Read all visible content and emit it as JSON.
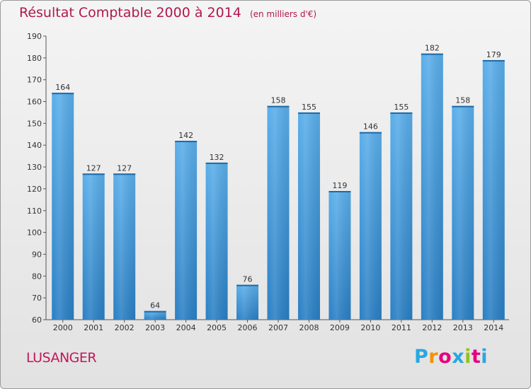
{
  "chart_data": {
    "type": "bar",
    "title": "Résultat Comptable 2000 à 2014",
    "subtitle": "(en milliers d'€)",
    "categories": [
      "2000",
      "2001",
      "2002",
      "2003",
      "2004",
      "2005",
      "2006",
      "2007",
      "2008",
      "2009",
      "2010",
      "2011",
      "2012",
      "2013",
      "2014"
    ],
    "values": [
      164,
      127,
      127,
      64,
      142,
      132,
      76,
      158,
      155,
      119,
      146,
      155,
      182,
      158,
      179
    ],
    "ylim": [
      60,
      190
    ],
    "yticks": [
      60,
      70,
      80,
      90,
      100,
      110,
      120,
      130,
      140,
      150,
      160,
      170,
      180,
      190
    ],
    "grid": false,
    "bar_color": "#3b93d8"
  },
  "place_name": "LUSANGER",
  "logo": {
    "text": "Proxiti",
    "colors": [
      "#2aa7e0",
      "#f39200",
      "#e6007e",
      "#2aa7e0",
      "#95c11f",
      "#e6007e",
      "#2aa7e0"
    ]
  },
  "colors": {
    "title": "#b0184f",
    "place": "#c2185b"
  }
}
